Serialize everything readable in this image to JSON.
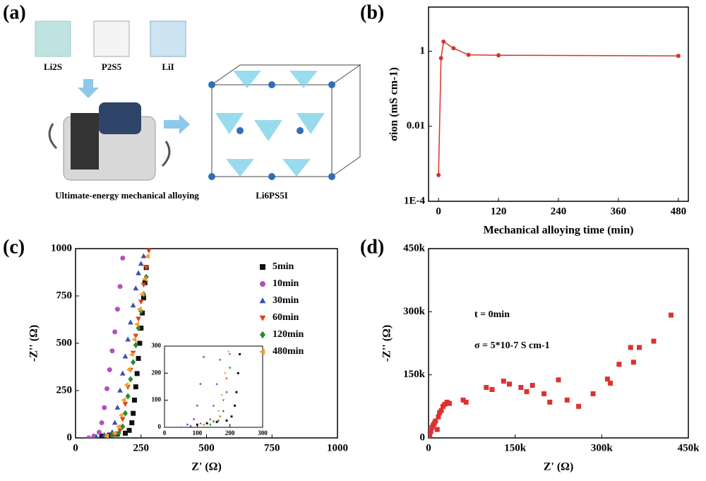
{
  "schematic": {
    "label": "(a)",
    "precursors": [
      "Li2S",
      "P2S5",
      "LiI"
    ],
    "process": "Ultimate-energy mechanical alloying",
    "product": "Li6PS5I"
  },
  "chart_data": [
    {
      "panel": "(b)",
      "type": "line",
      "color": "#d8322a",
      "xlabel": "Mechanical alloying time (min)",
      "ylabel": "σion (mS cm-1)",
      "xlim": [
        -20,
        500
      ],
      "xticks": [
        0,
        120,
        240,
        360,
        480
      ],
      "ylog": true,
      "ylim": [
        0.0001,
        15
      ],
      "yticks": [
        {
          "value": 0.0001,
          "label": "1E-4"
        },
        0.01,
        1
      ],
      "series": [
        {
          "x": [
            0,
            5,
            10,
            30,
            60,
            120,
            480
          ],
          "values": [
            0.0005,
            0.65,
            1.8,
            1.2,
            0.8,
            0.78,
            0.75
          ]
        }
      ]
    },
    {
      "panel": "(c)",
      "type": "scatter",
      "legend": "upper right",
      "xlabel": "Z' (Ω)",
      "ylabel": "-Z'' (Ω)",
      "xlim": [
        0,
        1000
      ],
      "xticks": [
        0,
        250,
        500,
        750,
        1000
      ],
      "ylim": [
        0,
        1000
      ],
      "yticks": [
        0,
        250,
        500,
        750,
        1000
      ],
      "inset": {
        "xlim": [
          0,
          300
        ],
        "xticks": [
          0,
          100,
          200,
          300
        ],
        "ylim": [
          0,
          300
        ],
        "yticks": [
          0,
          100,
          200,
          300
        ]
      },
      "series": [
        {
          "name": "5min",
          "color": "#111111",
          "marker": "square",
          "x": [
            100,
            130,
            160,
            190,
            205,
            215,
            220,
            225,
            230,
            235,
            240,
            245,
            250,
            255,
            260,
            265,
            270
          ],
          "values": [
            10,
            15,
            20,
            25,
            40,
            80,
            130,
            200,
            270,
            340,
            420,
            500,
            580,
            660,
            740,
            820,
            900
          ]
        },
        {
          "name": "10min",
          "color": "#b44fc0",
          "marker": "circle",
          "x": [
            50,
            70,
            90,
            100,
            110,
            120,
            130,
            140,
            150,
            160,
            170,
            180
          ],
          "values": [
            0,
            10,
            30,
            80,
            160,
            260,
            360,
            460,
            560,
            680,
            800,
            950
          ]
        },
        {
          "name": "30min",
          "color": "#3a4fb0",
          "marker": "triangle",
          "x": [
            80,
            110,
            140,
            150,
            160,
            170,
            180,
            190,
            200,
            210,
            220,
            230,
            240,
            250,
            260
          ],
          "values": [
            5,
            15,
            30,
            80,
            160,
            250,
            340,
            430,
            520,
            610,
            700,
            790,
            870,
            920,
            960
          ]
        },
        {
          "name": "60min",
          "color": "#e0401a",
          "marker": "triangle-down",
          "x": [
            120,
            150,
            170,
            180,
            190,
            200,
            210,
            220,
            230,
            240,
            250,
            260,
            270,
            280
          ],
          "values": [
            10,
            20,
            40,
            100,
            180,
            270,
            360,
            450,
            540,
            630,
            720,
            810,
            900,
            990
          ]
        },
        {
          "name": "120min",
          "color": "#2a8a2a",
          "marker": "diamond",
          "x": [
            140,
            165,
            180,
            190,
            200,
            210,
            220,
            230,
            240,
            250,
            260,
            270
          ],
          "values": [
            10,
            25,
            60,
            130,
            220,
            310,
            400,
            490,
            580,
            670,
            760,
            850
          ]
        },
        {
          "name": "480min",
          "color": "#f0a030",
          "marker": "triangle-left",
          "x": [
            120,
            150,
            165,
            175,
            185,
            195,
            205,
            215,
            225,
            235,
            245,
            255,
            265,
            275
          ],
          "values": [
            10,
            25,
            60,
            120,
            200,
            280,
            360,
            440,
            520,
            600,
            680,
            760,
            840,
            960
          ]
        }
      ]
    },
    {
      "panel": "(d)",
      "type": "scatter",
      "xlabel": "Z' (Ω)",
      "ylabel": "-Z'' (Ω)",
      "annotations": [
        "t = 0min",
        "σ = 5*10-7 S cm-1"
      ],
      "xlim": [
        0,
        450000
      ],
      "xticks": [
        0,
        {
          "value": 150000,
          "label": "150k"
        },
        {
          "value": 300000,
          "label": "300k"
        },
        {
          "value": 450000,
          "label": "450k"
        }
      ],
      "ylim": [
        0,
        450000
      ],
      "yticks": [
        0,
        {
          "value": 150000,
          "label": "150k"
        },
        {
          "value": 300000,
          "label": "300k"
        },
        {
          "value": 450000,
          "label": "450k"
        }
      ],
      "series": [
        {
          "color": "#e03030",
          "marker": "square",
          "x": [
            2000,
            4000,
            6000,
            8000,
            10000,
            12000,
            15000,
            17000,
            19000,
            22000,
            25000,
            28000,
            32000,
            36000,
            60000,
            65000,
            100000,
            110000,
            130000,
            140000,
            160000,
            170000,
            180000,
            200000,
            210000,
            225000,
            240000,
            260000,
            285000,
            310000,
            315000,
            330000,
            350000,
            355000,
            365000,
            390000,
            420000
          ],
          "values": [
            5000,
            15000,
            25000,
            30000,
            35000,
            40000,
            20000,
            50000,
            60000,
            65000,
            75000,
            80000,
            85000,
            82000,
            90000,
            85000,
            120000,
            115000,
            135000,
            128000,
            120000,
            110000,
            125000,
            105000,
            85000,
            138000,
            90000,
            75000,
            105000,
            140000,
            130000,
            175000,
            215000,
            180000,
            215000,
            230000,
            292000
          ]
        }
      ]
    }
  ]
}
